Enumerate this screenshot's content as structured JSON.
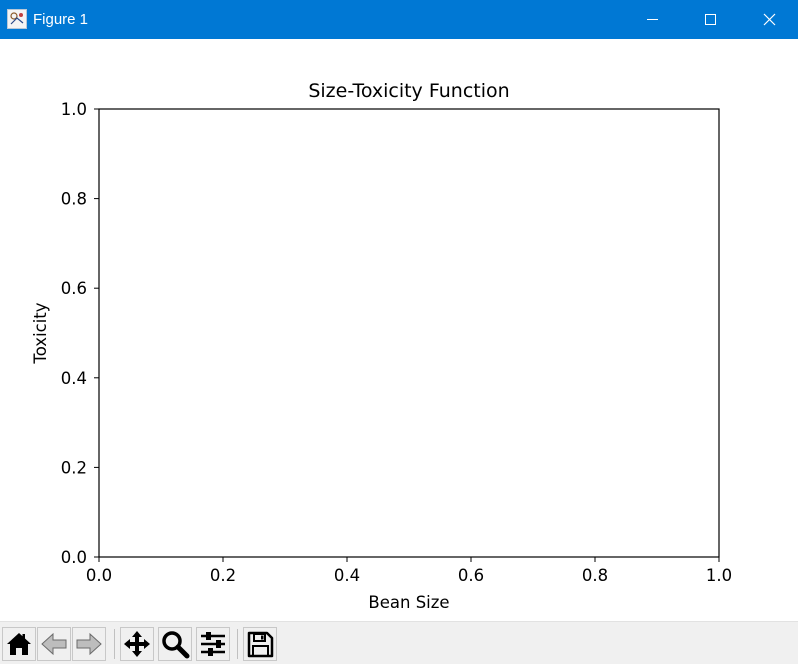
{
  "window": {
    "title": "Figure 1",
    "app_icon": "matplotlib-figure-icon",
    "controls": [
      "minimize-icon",
      "maximize-icon",
      "close-icon"
    ]
  },
  "colors": {
    "titlebar": "#0078d4",
    "titlebar_text": "#ffffff",
    "toolbar": "#f0f0f0",
    "figure_background": "#ffffff",
    "axes_edge": "#000000"
  },
  "toolbar": {
    "buttons": [
      {
        "name": "home-icon",
        "action": "home"
      },
      {
        "name": "back-icon",
        "action": "back"
      },
      {
        "name": "forward-icon",
        "action": "forward"
      },
      {
        "name": "pan-icon",
        "action": "pan"
      },
      {
        "name": "zoom-icon",
        "action": "zoom"
      },
      {
        "name": "configure-subplots-icon",
        "action": "configure subplots"
      },
      {
        "name": "save-icon",
        "action": "save"
      }
    ]
  },
  "chart_data": {
    "type": "line",
    "title": "Size-Toxicity Function",
    "xlabel": "Bean Size",
    "ylabel": "Toxicity",
    "xlim": [
      0.0,
      1.0
    ],
    "ylim": [
      0.0,
      1.0
    ],
    "xticks": [
      "0.0",
      "0.2",
      "0.4",
      "0.6",
      "0.8",
      "1.0"
    ],
    "yticks": [
      "0.0",
      "0.2",
      "0.4",
      "0.6",
      "0.8",
      "1.0"
    ],
    "series": [],
    "grid": false,
    "legend": "none"
  }
}
